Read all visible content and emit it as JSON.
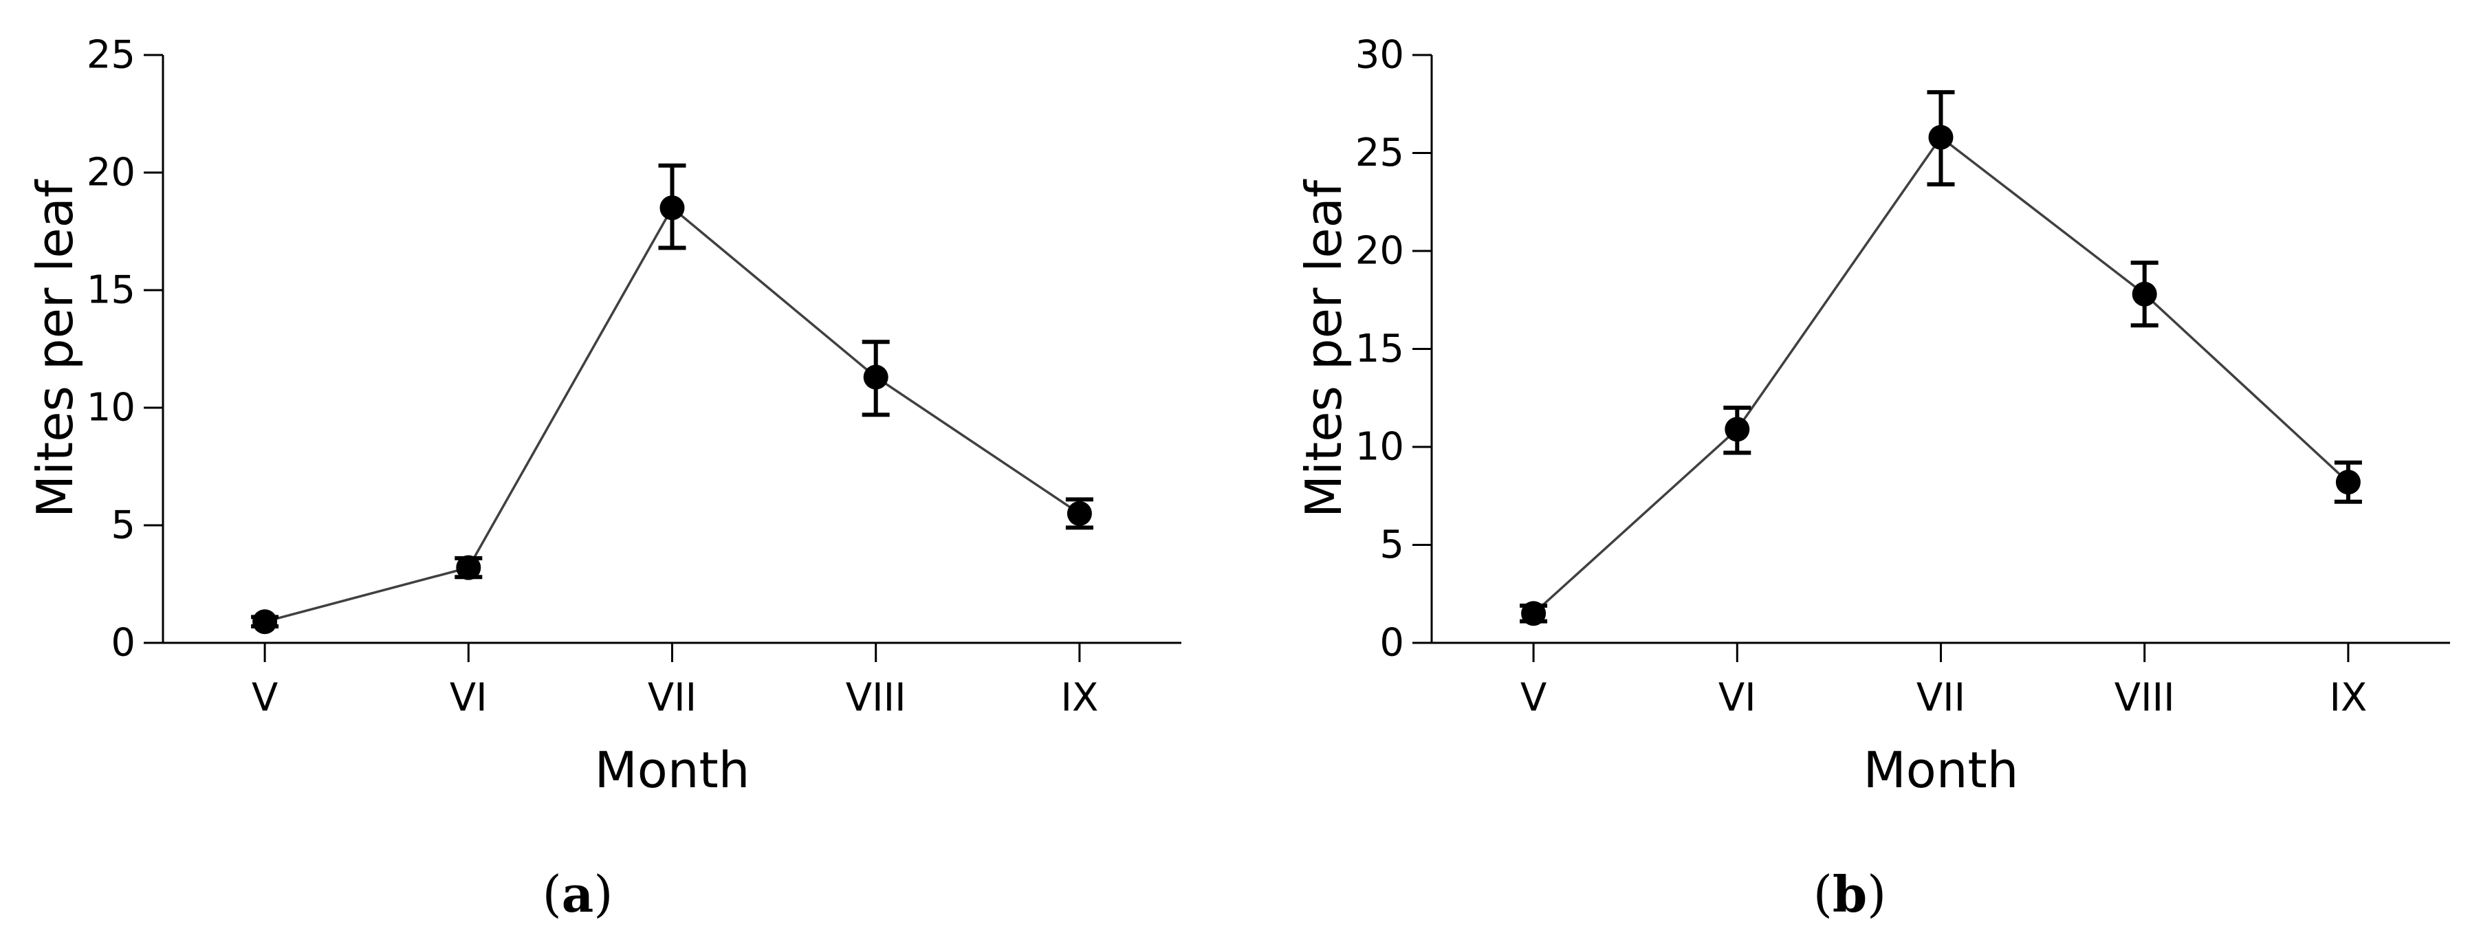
{
  "chart_data": [
    {
      "type": "line",
      "panel_label": "a",
      "xlabel": "Month",
      "ylabel": "Mites per leaf",
      "categories": [
        "V",
        "VI",
        "VII",
        "VIII",
        "IX"
      ],
      "ylim": [
        0,
        25
      ],
      "yticks": [
        0,
        5,
        10,
        15,
        20,
        25
      ],
      "series": [
        {
          "values": [
            0.9,
            3.2,
            18.5,
            11.3,
            5.5
          ],
          "error_low": [
            0.7,
            2.8,
            16.8,
            9.7,
            4.9
          ],
          "error_high": [
            1.1,
            3.6,
            20.3,
            12.8,
            6.1
          ]
        }
      ],
      "grid": false,
      "legend": "none"
    },
    {
      "type": "line",
      "panel_label": "b",
      "xlabel": "Month",
      "ylabel": "Mites per leaf",
      "categories": [
        "V",
        "VI",
        "VII",
        "VIII",
        "IX"
      ],
      "ylim": [
        0,
        30
      ],
      "yticks": [
        0,
        5,
        10,
        15,
        20,
        25,
        30
      ],
      "series": [
        {
          "values": [
            1.5,
            10.9,
            25.8,
            17.8,
            8.2
          ],
          "error_low": [
            1.1,
            9.7,
            23.4,
            16.2,
            7.2
          ],
          "error_high": [
            1.9,
            12.0,
            28.1,
            19.4,
            9.2
          ]
        }
      ],
      "grid": false,
      "legend": "none"
    }
  ]
}
